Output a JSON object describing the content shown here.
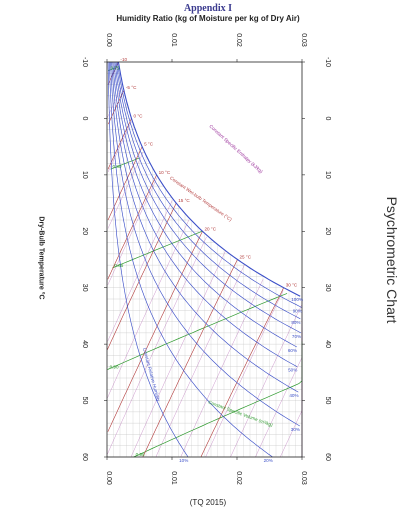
{
  "header": {
    "app_title": "Appendix I",
    "top_axis_title": "Humidity Ratio (kg of Moisture per kg of Dry Air)",
    "side_title": "Psychrometric Chart",
    "yaxis_title": "Dry-Bulb Temperature °C",
    "source_note": "(TQ 2015)"
  },
  "chart_data": {
    "type": "line",
    "title": "Psychrometric Chart",
    "orientation": "rotated 90°: humidity ratio on horizontal axis (top & bottom), dry-bulb temperature on vertical axis (left & right)",
    "humidity_axis": {
      "label": "Humidity Ratio (kg of Moisture per kg of Dry Air)",
      "range": [
        0,
        0.03
      ],
      "ticks": [
        "0.00",
        "0.01",
        "0.02",
        "0.03"
      ]
    },
    "temperature_axis": {
      "label": "Dry-Bulb Temperature °C",
      "range": [
        -10,
        60
      ],
      "ticks": [
        "-10",
        "0",
        "10",
        "20",
        "30",
        "40",
        "50",
        "60"
      ]
    },
    "annotations": [
      "Constant Specific Enthalpy (kJ/kg)",
      "Constant Wet-bulb Temperature (°C)",
      "Constant Relative Humidity",
      "Constant Specific Volume (m³/kg)"
    ],
    "wetbulb_labels": [
      "-10",
      "-5 °C",
      "0 °C",
      "5 °C",
      "10 °C",
      "15 °C",
      "20 °C",
      "25 °C",
      "30 °C"
    ],
    "rh_labels": [
      "10%",
      "20%",
      "30%",
      "40%",
      "50%",
      "60%",
      "70%",
      "80%",
      "90%",
      "100%"
    ],
    "volume_labels": [
      "0.75",
      "0.80",
      "0.85",
      "0.90",
      "0.95"
    ],
    "series": [
      {
        "name": "rh",
        "values": [
          10,
          20,
          30,
          40,
          50,
          60,
          70,
          80,
          90,
          100
        ]
      },
      {
        "name": "wetbulb",
        "values": [
          -10,
          -5,
          0,
          5,
          10,
          15,
          20,
          25,
          30
        ]
      },
      {
        "name": "volume",
        "values": [
          0.75,
          0.8,
          0.85,
          0.9,
          0.95
        ]
      }
    ],
    "colors": {
      "rh_lines": "#3b4fc8",
      "wetbulb_lines": "#b23a3a",
      "volume_lines": "#2e9a2e",
      "enthalpy_lines": "#9a2f9a",
      "grid": "#c8c8c8",
      "axis": "#222222"
    }
  }
}
